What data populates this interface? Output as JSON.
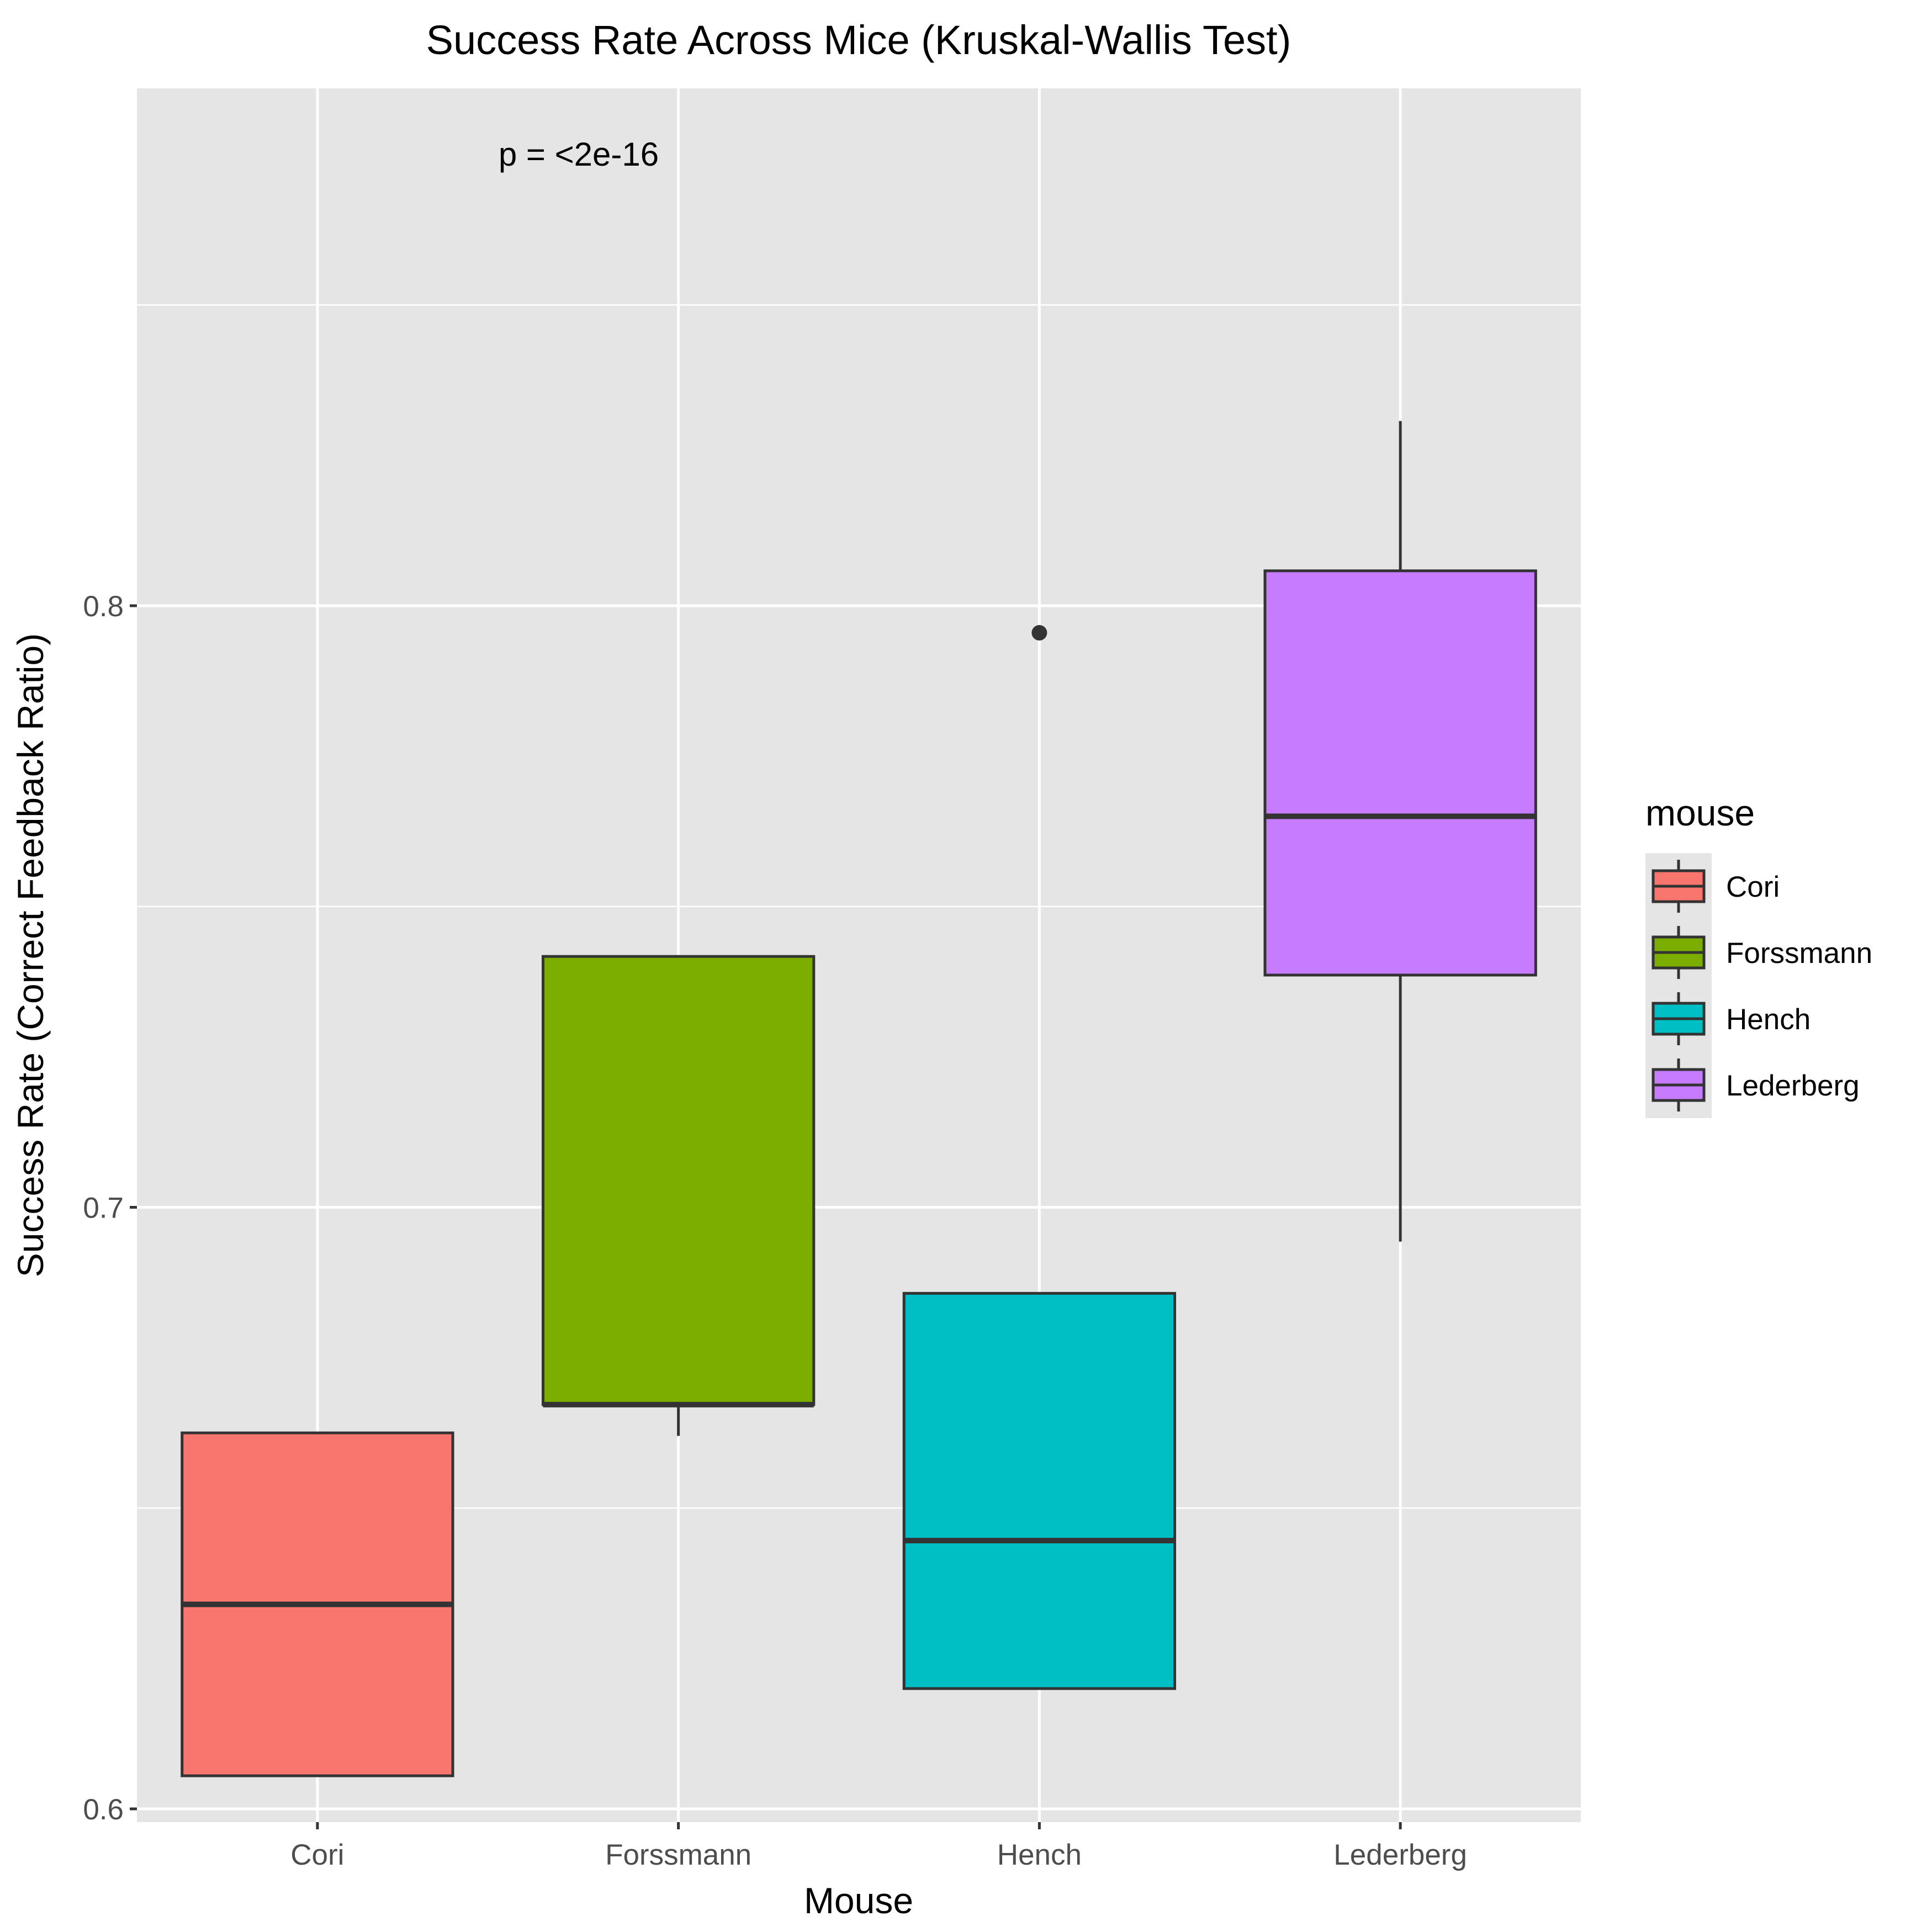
{
  "chart_data": {
    "type": "boxplot",
    "title": "Success Rate Across Mice (Kruskal-Wallis Test)",
    "xlabel": "Mouse",
    "ylabel": "Success Rate (Correct Feedback Ratio)",
    "ylim": [
      0.5978,
      0.886
    ],
    "yticks": [
      0.6,
      0.7,
      0.8
    ],
    "ytick_labels": [
      "0.6",
      "0.7",
      "0.8"
    ],
    "y_minor_ticks": [
      0.65,
      0.75,
      0.85
    ],
    "grid": true,
    "annotation": "p = <2e-16",
    "legend": {
      "title": "mouse",
      "position": "right"
    },
    "categories": [
      "Cori",
      "Forssmann",
      "Hench",
      "Lederberg"
    ],
    "boxes": [
      {
        "name": "Cori",
        "color": "#F8766D",
        "whisker_low": 0.6055,
        "q1": 0.6055,
        "median": 0.634,
        "q3": 0.6625,
        "whisker_high": 0.6625,
        "outliers": []
      },
      {
        "name": "Forssmann",
        "color": "#7CAE00",
        "whisker_low": 0.662,
        "q1": 0.6672,
        "median": 0.6672,
        "q3": 0.7417,
        "whisker_high": 0.7417,
        "outliers": []
      },
      {
        "name": "Hench",
        "color": "#00BFC4",
        "whisker_low": 0.62,
        "q1": 0.62,
        "median": 0.6446,
        "q3": 0.6857,
        "whisker_high": 0.6857,
        "outliers": [
          0.7955
        ]
      },
      {
        "name": "Lederberg",
        "color": "#C77CFF",
        "whisker_low": 0.6943,
        "q1": 0.7386,
        "median": 0.765,
        "q3": 0.8058,
        "whisker_high": 0.8307,
        "outliers": []
      }
    ]
  }
}
